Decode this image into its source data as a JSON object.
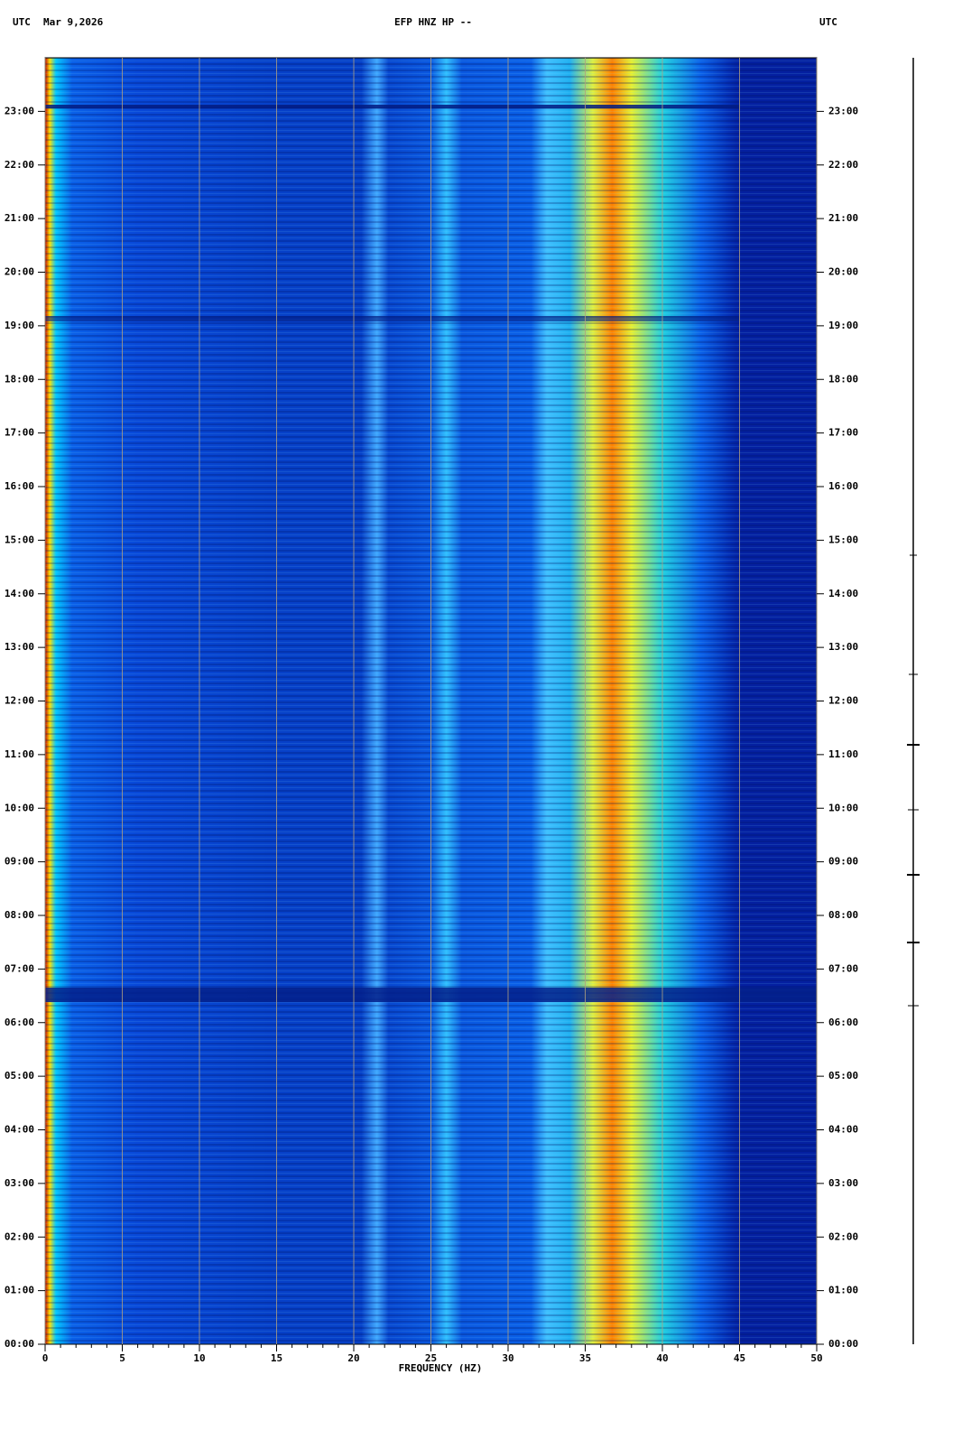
{
  "chart_data": {
    "type": "spectrogram",
    "title": "EFP HNZ HP --",
    "date": "Mar 9,2026",
    "timezone_left": "UTC",
    "timezone_right": "UTC",
    "x_label": "FREQUENCY (HZ)",
    "xlim": [
      0,
      50
    ],
    "xticks": [
      0,
      5,
      10,
      15,
      20,
      25,
      30,
      35,
      40,
      45,
      50
    ],
    "xminorticks": [
      1,
      2,
      3,
      4,
      6,
      7,
      8,
      9,
      11,
      12,
      13,
      14,
      16,
      17,
      18,
      19,
      21,
      22,
      23,
      24,
      26,
      27,
      28,
      29,
      31,
      32,
      33,
      34,
      36,
      37,
      38,
      39,
      41,
      42,
      43,
      44,
      46,
      47,
      48,
      49
    ],
    "ylim": [
      0,
      24
    ],
    "yticks": [
      {
        "value": 0,
        "label": "00:00"
      },
      {
        "value": 1,
        "label": "01:00"
      },
      {
        "value": 2,
        "label": "02:00"
      },
      {
        "value": 3,
        "label": "03:00"
      },
      {
        "value": 4,
        "label": "04:00"
      },
      {
        "value": 5,
        "label": "05:00"
      },
      {
        "value": 6,
        "label": "06:00"
      },
      {
        "value": 7,
        "label": "07:00"
      },
      {
        "value": 8,
        "label": "08:00"
      },
      {
        "value": 9,
        "label": "09:00"
      },
      {
        "value": 10,
        "label": "10:00"
      },
      {
        "value": 11,
        "label": "11:00"
      },
      {
        "value": 12,
        "label": "12:00"
      },
      {
        "value": 13,
        "label": "13:00"
      },
      {
        "value": 14,
        "label": "14:00"
      },
      {
        "value": 15,
        "label": "15:00"
      },
      {
        "value": 16,
        "label": "16:00"
      },
      {
        "value": 17,
        "label": "17:00"
      },
      {
        "value": 18,
        "label": "18:00"
      },
      {
        "value": 19,
        "label": "19:00"
      },
      {
        "value": 20,
        "label": "20:00"
      },
      {
        "value": 21,
        "label": "21:00"
      },
      {
        "value": 22,
        "label": "22:00"
      },
      {
        "value": 23,
        "label": "23:00"
      }
    ],
    "grid": true,
    "grid_color": "#b0a080"
  }
}
